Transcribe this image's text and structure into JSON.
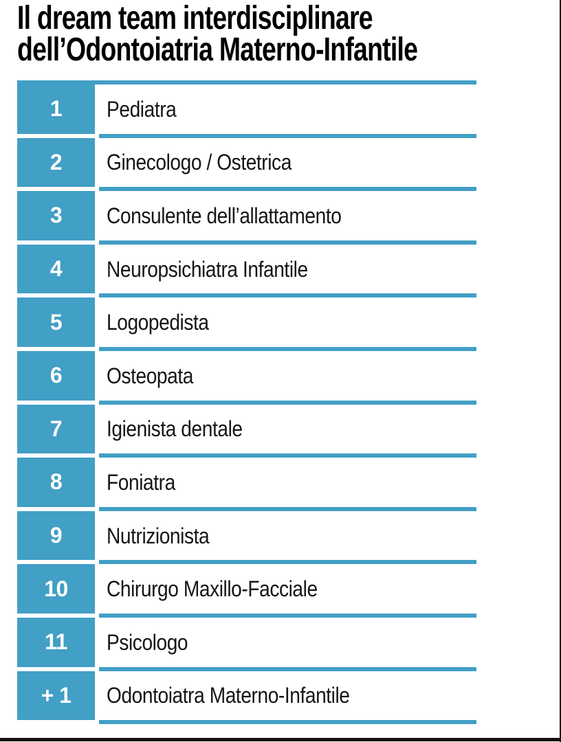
{
  "page": {
    "title_line1": "Il dream team interdisciplinare",
    "title_line2": "dell’Odontoiatria Materno-Infantile"
  },
  "colors": {
    "accent_blue": "#429fc5",
    "edge_black": "#111111",
    "number_text": "#ffffff",
    "body_text": "#161616"
  },
  "team_table": {
    "rows": [
      {
        "number": "1",
        "label": "Pediatra"
      },
      {
        "number": "2",
        "label": "Ginecologo / Ostetrica"
      },
      {
        "number": "3",
        "label": "Consulente dell’allattamento"
      },
      {
        "number": "4",
        "label": "Neuropsichiatra Infantile"
      },
      {
        "number": "5",
        "label": "Logopedista"
      },
      {
        "number": "6",
        "label": "Osteopata"
      },
      {
        "number": "7",
        "label": "Igienista dentale"
      },
      {
        "number": "8",
        "label": "Foniatra"
      },
      {
        "number": "9",
        "label": "Nutrizionista"
      },
      {
        "number": "10",
        "label": "Chirurgo Maxillo-Facciale"
      },
      {
        "number": "11",
        "label": "Psicologo"
      },
      {
        "number": "+ 1",
        "label": "Odontoiatra Materno-Infantile"
      }
    ]
  }
}
